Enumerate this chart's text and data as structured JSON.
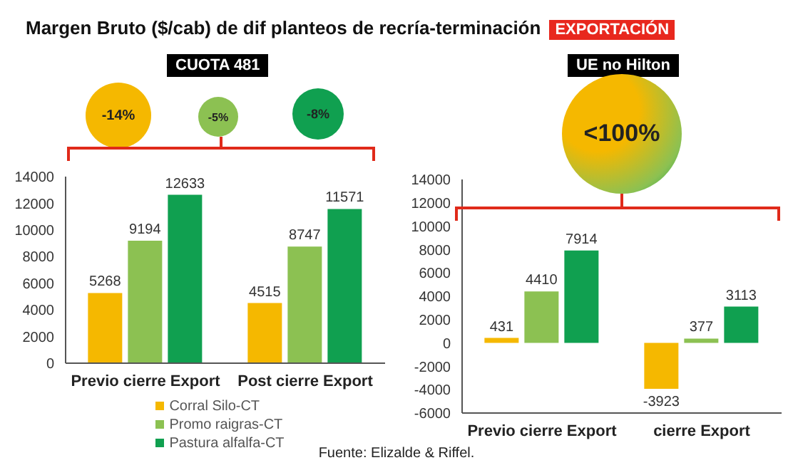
{
  "chart_data": [
    {
      "type": "bar",
      "title": "Margen Bruto ($/cab) de dif planteos de recría-terminación",
      "subtitle": "CUOTA 481",
      "annotations": [
        "EXPORTACIÓN",
        "-14%",
        "-5%",
        "-8%"
      ],
      "categories": [
        "Previo cierre Export",
        "Post cierre Export"
      ],
      "series": [
        {
          "name": "Corral Silo-CT",
          "color": "#f5b800",
          "values": [
            5268,
            4515
          ]
        },
        {
          "name": "Promo raigras-CT",
          "color": "#8cc152",
          "values": [
            9194,
            8747
          ]
        },
        {
          "name": "Pastura alfalfa-CT",
          "color": "#10a050",
          "values": [
            12633,
            11571
          ]
        }
      ],
      "ylim": [
        0,
        14000
      ],
      "yticks": [
        0,
        2000,
        4000,
        6000,
        8000,
        10000,
        12000,
        14000
      ],
      "data_labels": true,
      "legend": "bottom"
    },
    {
      "type": "bar",
      "subtitle": "UE no Hilton",
      "annotations": [
        "<100%",
        "Fuente: Elizalde & Riffel."
      ],
      "categories": [
        "Previo cierre Export",
        "cierre Export"
      ],
      "series": [
        {
          "color": "#f5b800",
          "values": [
            431,
            -3923
          ]
        },
        {
          "color": "#8cc152",
          "values": [
            4410,
            377
          ]
        },
        {
          "color": "#10a050",
          "values": [
            7914,
            3113
          ]
        }
      ],
      "ylim": [
        -6000,
        14000
      ],
      "yticks": [
        -6000,
        -4000,
        -2000,
        0,
        2000,
        4000,
        6000,
        8000,
        10000,
        12000,
        14000
      ],
      "data_labels": true
    }
  ]
}
